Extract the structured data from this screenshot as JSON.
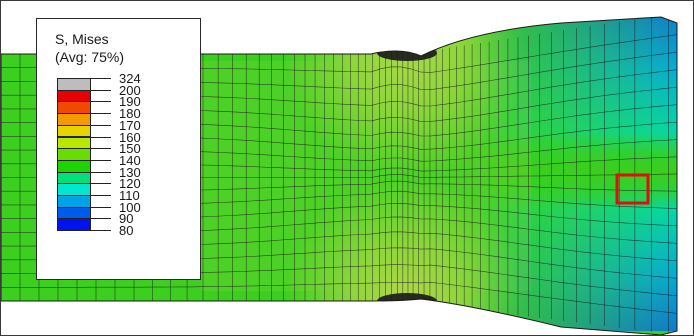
{
  "legend": {
    "title_line1": "S, Mises",
    "title_line2": "(Avg: 75%)",
    "levels": [
      {
        "label": "324",
        "color": "#bdbdbd"
      },
      {
        "label": "200",
        "color": "#bdbdbd"
      },
      {
        "label": "190",
        "color": "#e80000"
      },
      {
        "label": "180",
        "color": "#f04a00"
      },
      {
        "label": "170",
        "color": "#f39a00"
      },
      {
        "label": "160",
        "color": "#e6d400"
      },
      {
        "label": "150",
        "color": "#b9e800"
      },
      {
        "label": "140",
        "color": "#66de00"
      },
      {
        "label": "130",
        "color": "#1ed400"
      },
      {
        "label": "120",
        "color": "#00e07a"
      },
      {
        "label": "110",
        "color": "#00e6cf"
      },
      {
        "label": "100",
        "color": "#00a3e6"
      },
      {
        "label": "90",
        "color": "#005bea"
      },
      {
        "label": "80",
        "color": "#0012f0"
      }
    ]
  },
  "highlight_color": "#e01010",
  "mesh_line_color": "#1a1a1a"
}
